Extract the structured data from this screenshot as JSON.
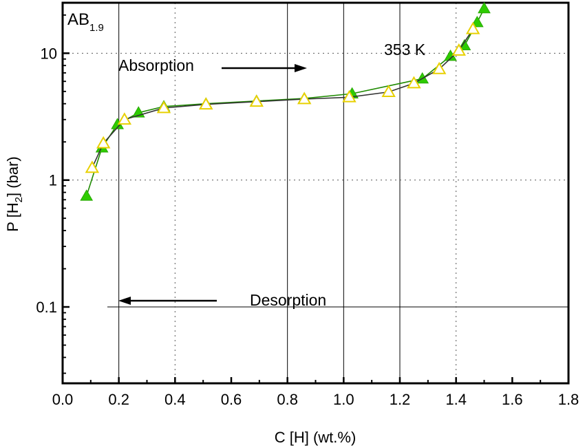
{
  "chart_data": {
    "type": "scatter",
    "title": "",
    "xlabel": "C [H] (wt.%)",
    "ylabel_main": "P [H",
    "ylabel_sub": "2",
    "ylabel_end": "] (bar)",
    "xlim": [
      0.0,
      1.8
    ],
    "ylim": [
      0.025,
      25
    ],
    "yscale": "log",
    "x_ticks": [
      0.0,
      0.2,
      0.4,
      0.6,
      0.8,
      1.0,
      1.2,
      1.4,
      1.6,
      1.8
    ],
    "x_tick_labels": [
      "0.0",
      "0.2",
      "0.4",
      "0.6",
      "0.8",
      "1.0",
      "1.2",
      "1.4",
      "1.6",
      "1.8"
    ],
    "y_ticks": [
      0.1,
      1,
      10
    ],
    "y_tick_labels": [
      "0.1",
      "1",
      "10"
    ],
    "grid_x": [
      0.2,
      0.8,
      1.0,
      1.2
    ],
    "grid_y": [
      0.1
    ],
    "series": [
      {
        "marker": "filled-triangle",
        "color": "#2ecc00",
        "x": [
          0.085,
          0.14,
          0.195,
          0.27,
          0.36,
          0.51,
          0.69,
          0.86,
          1.03,
          1.28,
          1.38,
          1.43,
          1.475,
          1.5
        ],
        "y": [
          0.75,
          1.8,
          2.75,
          3.4,
          3.8,
          4.0,
          4.2,
          4.4,
          4.8,
          6.3,
          9.5,
          11.5,
          17.5,
          22.5
        ]
      },
      {
        "marker": "open-triangle",
        "color": "#e8d000",
        "x": [
          0.105,
          0.145,
          0.22,
          0.36,
          0.51,
          0.69,
          0.86,
          1.02,
          1.16,
          1.25,
          1.34,
          1.41,
          1.46
        ],
        "y": [
          1.25,
          1.95,
          3.0,
          3.7,
          3.95,
          4.15,
          4.35,
          4.5,
          4.95,
          5.8,
          7.5,
          10.5,
          15.5
        ]
      }
    ],
    "annotations": {
      "sample_main": "AB",
      "sample_sub": "1.9",
      "temperature": "353 K",
      "absorption": "Absorption",
      "desorption": "Desorption"
    }
  }
}
